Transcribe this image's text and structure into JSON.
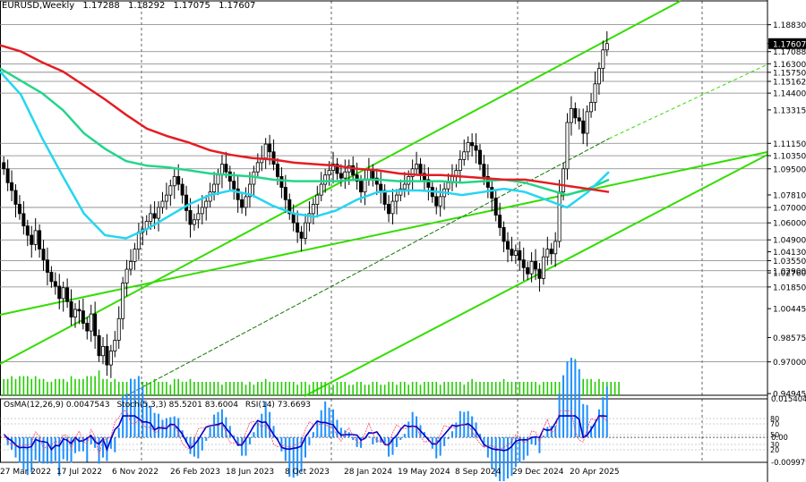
{
  "header": {
    "symbol": "EURUSD,Weekly",
    "open": "1.17288",
    "high": "1.18292",
    "low": "1.17075",
    "close": "1.17607"
  },
  "indicators": {
    "osma": "OsMA(12,26,9) 0.0047543",
    "stoch": "Stoch(5,3,3) 85.5201 83.6004",
    "rsi": "RSI(14) 73.6693"
  },
  "colors": {
    "candle": "#000000",
    "ema_red": "#e51c23",
    "ema_aqua": "#23d6f0",
    "ema_green": "#22d68a",
    "channel": "#33dd00",
    "grid": "#000000",
    "hlines": "#808080",
    "volume": "#22cc00",
    "osma_hist": "#1e90ff",
    "stoch_main": "#1565c0",
    "stoch_signal": "#ff4060",
    "rsi": "#0000c8",
    "price_box_bg": "#000000",
    "price_box_text": "#ffffff"
  },
  "chart_data": {
    "type": "candlestick",
    "title": "EURUSD,Weekly",
    "x_ticks": [
      "27 Mar 2022",
      "17 Jul 2022",
      "6 Nov 2022",
      "26 Feb 2023",
      "18 Jun 2023",
      "8 Oct 2023",
      "28 Jan 2024",
      "19 May 2024",
      "8 Sep 2024",
      "29 Dec 2024",
      "20 Apr 2025"
    ],
    "y_ticks": [
      "1.18830",
      "1.17607",
      "1.17088",
      "1.16300",
      "1.15750",
      "1.15162",
      "1.14400",
      "1.13315",
      "1.11150",
      "1.10350",
      "1.09500",
      "1.07810",
      "1.07000",
      "1.06000",
      "1.04900",
      "1.04130",
      "1.03550",
      "1.02900",
      "1.02760",
      "1.01850",
      "1.00445",
      "0.98575",
      "0.97000",
      "0.94945"
    ],
    "ylim": [
      0.9478,
      1.1962
    ],
    "horizontal_levels": [
      1.1883,
      1.17088,
      1.163,
      1.1575,
      1.15162,
      1.144,
      1.1115,
      1.1035,
      1.095,
      1.07,
      1.06,
      1.049,
      1.0355,
      1.029,
      1.0185,
      0.97
    ],
    "current_price": 1.17607,
    "closes": [
      1.095,
      1.086,
      1.081,
      1.072,
      1.066,
      1.058,
      1.052,
      1.046,
      1.055,
      1.043,
      1.036,
      1.028,
      1.022,
      1.019,
      1.011,
      1.018,
      1.009,
      0.999,
      1.004,
      1.003,
      0.995,
      0.99,
      1.001,
      0.987,
      0.974,
      0.98,
      0.968,
      0.977,
      0.984,
      0.998,
      1.021,
      1.03,
      1.035,
      1.043,
      1.054,
      1.056,
      1.061,
      1.066,
      1.063,
      1.07,
      1.074,
      1.078,
      1.084,
      1.09,
      1.085,
      1.078,
      1.068,
      1.059,
      1.062,
      1.066,
      1.07,
      1.074,
      1.08,
      1.085,
      1.091,
      1.098,
      1.093,
      1.087,
      1.082,
      1.075,
      1.07,
      1.077,
      1.085,
      1.093,
      1.099,
      1.102,
      1.111,
      1.106,
      1.098,
      1.09,
      1.083,
      1.075,
      1.066,
      1.06,
      1.054,
      1.05,
      1.06,
      1.066,
      1.072,
      1.078,
      1.085,
      1.091,
      1.094,
      1.098,
      1.092,
      1.089,
      1.093,
      1.097,
      1.091,
      1.087,
      1.08,
      1.088,
      1.094,
      1.089,
      1.085,
      1.081,
      1.072,
      1.066,
      1.074,
      1.078,
      1.082,
      1.085,
      1.09,
      1.095,
      1.098,
      1.092,
      1.088,
      1.083,
      1.077,
      1.071,
      1.077,
      1.082,
      1.086,
      1.09,
      1.094,
      1.101,
      1.106,
      1.112,
      1.11,
      1.107,
      1.098,
      1.09,
      1.083,
      1.076,
      1.065,
      1.057,
      1.048,
      1.043,
      1.039,
      1.042,
      1.036,
      1.031,
      1.027,
      1.035,
      1.03,
      1.024,
      1.038,
      1.043,
      1.04,
      1.048,
      1.08,
      1.095,
      1.125,
      1.134,
      1.128,
      1.126,
      1.118,
      1.132,
      1.138,
      1.15,
      1.16,
      1.172,
      1.1761
    ],
    "ema_red": [
      1.175,
      1.171,
      1.164,
      1.158,
      1.149,
      1.14,
      1.13,
      1.121,
      1.116,
      1.112,
      1.107,
      1.104,
      1.102,
      1.101,
      1.099,
      1.098,
      1.097,
      1.095,
      1.094,
      1.092,
      1.091,
      1.091,
      1.09,
      1.089,
      1.088,
      1.088,
      1.086,
      1.084,
      1.082,
      1.08
    ],
    "ema_aqua": [
      1.158,
      1.143,
      1.115,
      1.09,
      1.066,
      1.052,
      1.05,
      1.056,
      1.064,
      1.072,
      1.078,
      1.081,
      1.078,
      1.071,
      1.066,
      1.064,
      1.068,
      1.075,
      1.08,
      1.081,
      1.081,
      1.08,
      1.078,
      1.08,
      1.082,
      1.08,
      1.075,
      1.07,
      1.08,
      1.093
    ],
    "ema_green": [
      1.16,
      1.152,
      1.144,
      1.133,
      1.118,
      1.108,
      1.1,
      1.097,
      1.096,
      1.094,
      1.092,
      1.091,
      1.09,
      1.088,
      1.087,
      1.087,
      1.087,
      1.088,
      1.088,
      1.087,
      1.087,
      1.087,
      1.086,
      1.087,
      1.088,
      1.086,
      1.082,
      1.078,
      1.082,
      1.088
    ],
    "volume": [
      6,
      6,
      7,
      6,
      7,
      7,
      7,
      6,
      7,
      6,
      6,
      5,
      5,
      6,
      6,
      6,
      5,
      7,
      6,
      6,
      6,
      7,
      7,
      7,
      9,
      6,
      6,
      5,
      6,
      5,
      5,
      5,
      5,
      6,
      5,
      5,
      5,
      5,
      6,
      5,
      5,
      5,
      4,
      6,
      6,
      5,
      5,
      6,
      5,
      5,
      5,
      5,
      5,
      5,
      5,
      4,
      5,
      5,
      5,
      5,
      5,
      4,
      5,
      4,
      5,
      5,
      6,
      5,
      5,
      5,
      5,
      5,
      5,
      5,
      4,
      5,
      5,
      4,
      5,
      5,
      5,
      5,
      4,
      4,
      5,
      5,
      5,
      4,
      4,
      5,
      5,
      4,
      4,
      5,
      5,
      4,
      4,
      5,
      5,
      4,
      5,
      5,
      4,
      5,
      5,
      4,
      5,
      5,
      5,
      5,
      4,
      5,
      5,
      5,
      5,
      5,
      4,
      5,
      6,
      5,
      5,
      5,
      5,
      5,
      5,
      5,
      6,
      5,
      5,
      5,
      5,
      5,
      5,
      5,
      5,
      4,
      5,
      5,
      5,
      5,
      5,
      6,
      5,
      6,
      13,
      7,
      6,
      6,
      6,
      5,
      6,
      5,
      5,
      5,
      5,
      5
    ],
    "osma_ylim": [
      -0.009979,
      0.015404
    ],
    "osma_ticks": [
      "0.015404",
      "0.00",
      "-0.009979"
    ],
    "rsi_ticks": [
      "80",
      "70",
      "50",
      "30",
      "20"
    ],
    "x_range": [
      "27 Mar 2022",
      "20 Apr 2025"
    ]
  }
}
